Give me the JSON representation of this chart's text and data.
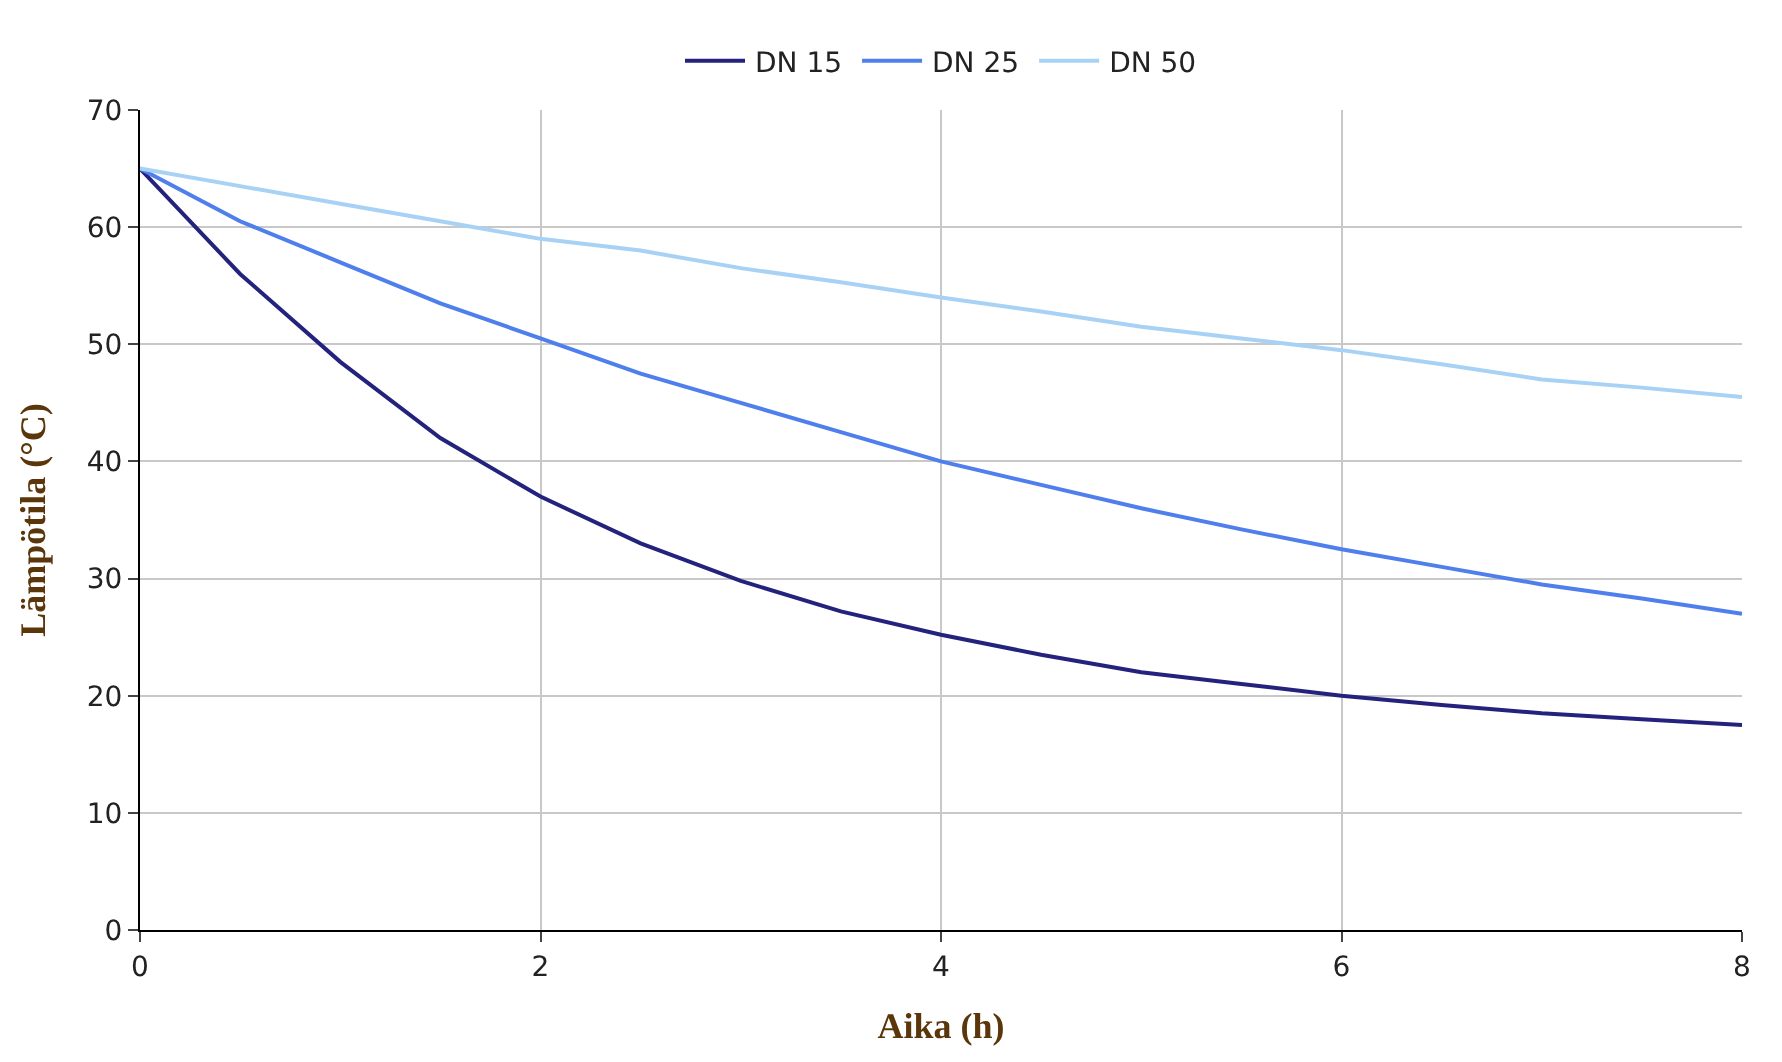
{
  "chart_data": {
    "type": "line",
    "xlabel": "Aika (h)",
    "ylabel": "Lämpötila (°C)",
    "x": [
      0,
      0.5,
      1,
      1.5,
      2,
      2.5,
      3,
      3.5,
      4,
      4.5,
      5,
      5.5,
      6,
      6.5,
      7,
      7.5,
      8
    ],
    "series": [
      {
        "name": "DN 15",
        "color": "#23237e",
        "values": [
          65,
          56,
          48.5,
          42,
          37,
          33,
          29.8,
          27.2,
          25.2,
          23.5,
          22,
          21,
          20,
          19.2,
          18.5,
          18,
          17.5
        ]
      },
      {
        "name": "DN 25",
        "color": "#4f7fec",
        "values": [
          65,
          60.5,
          57,
          53.5,
          50.5,
          47.5,
          45,
          42.5,
          40,
          38,
          36,
          34.2,
          32.5,
          31,
          29.5,
          28.3,
          27
        ]
      },
      {
        "name": "DN 50",
        "color": "#a8d2f5",
        "values": [
          65,
          63.5,
          62,
          60.5,
          59,
          58,
          56.5,
          55.3,
          54,
          52.8,
          51.5,
          50.5,
          49.5,
          48.3,
          47,
          46.3,
          45.5
        ]
      }
    ],
    "xlim": [
      0,
      8
    ],
    "xticks": [
      0,
      2,
      4,
      6,
      8
    ],
    "ylim": [
      0,
      70
    ],
    "yticks": [
      0,
      10,
      20,
      30,
      40,
      50,
      60,
      70
    ],
    "grid": true,
    "legend": "top",
    "marker": "none",
    "line_style": "solid"
  }
}
